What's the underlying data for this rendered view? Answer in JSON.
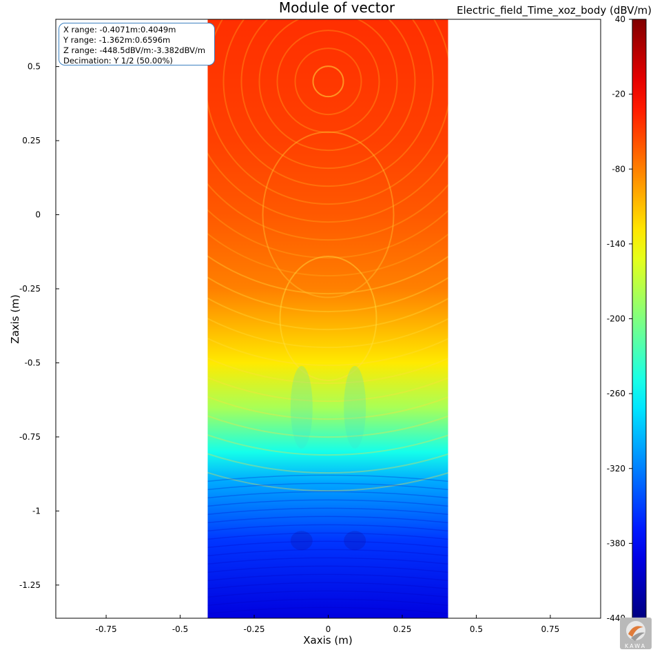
{
  "chart_data": {
    "type": "heatmap",
    "title": "Module of vector",
    "colorbar_title": "Electric_field_Time_xoz_body (dBV/m)",
    "xlabel": "Xaxis (m)",
    "ylabel": "Zaxis (m)",
    "x_ticks": [
      "-0.75",
      "-0.5",
      "-0.25",
      "0",
      "0.25",
      "0.5",
      "0.75"
    ],
    "x_tick_values": [
      -0.75,
      -0.5,
      -0.25,
      0,
      0.25,
      0.5,
      0.75
    ],
    "y_ticks": [
      "0.5",
      "0.25",
      "0",
      "-0.25",
      "-0.5",
      "-0.75",
      "-1",
      "-1.25"
    ],
    "y_tick_values": [
      0.5,
      0.25,
      0,
      -0.25,
      -0.5,
      -0.75,
      -1,
      -1.25
    ],
    "colorbar_ticks": [
      "40",
      "-20",
      "-80",
      "-140",
      "-200",
      "-260",
      "-320",
      "-380",
      "-440"
    ],
    "colorbar_tick_values": [
      40,
      -20,
      -80,
      -140,
      -200,
      -260,
      -320,
      -380,
      -440
    ],
    "xlim": [
      -0.92,
      0.92
    ],
    "ylim": [
      -1.362,
      0.6596
    ],
    "zlim": [
      -440,
      40
    ],
    "data_extent": {
      "x": [
        -0.4071,
        0.4049
      ],
      "z": [
        -1.362,
        0.6596
      ]
    },
    "colormap": "jet",
    "field_profile": [
      {
        "z": 0.66,
        "value": -42
      },
      {
        "z": 0.25,
        "value": -50
      },
      {
        "z": 0.0,
        "value": -62
      },
      {
        "z": -0.25,
        "value": -80
      },
      {
        "z": -0.5,
        "value": -130
      },
      {
        "z": -0.65,
        "value": -180
      },
      {
        "z": -0.8,
        "value": -250
      },
      {
        "z": -0.9,
        "value": -300
      },
      {
        "z": -1.1,
        "value": -355
      },
      {
        "z": -1.362,
        "value": -395
      }
    ],
    "source_position": {
      "x": 0.0,
      "z": 0.45
    },
    "info": {
      "x_range": "X range: -0.4071m:0.4049m",
      "y_range": "Y range: -1.362m:0.6596m",
      "z_range": "Z range: -448.5dBV/m:-3.382dBV/m",
      "decimation": "Decimation: Y 1/2 (50.00%)"
    }
  },
  "logo": {
    "name": "kawa-logo-icon",
    "text": "KAWA"
  }
}
